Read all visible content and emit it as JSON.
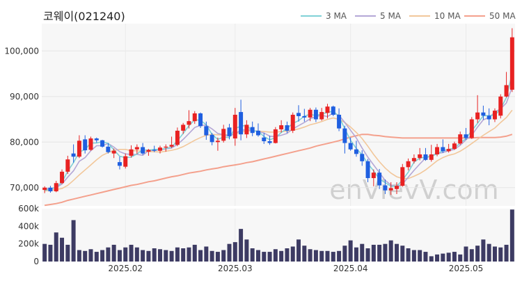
{
  "chart_data": {
    "type": "candlestick",
    "title": "코웨이(021240)",
    "watermark": "enVievV.com",
    "legend": [
      {
        "name": "3 MA",
        "color": "#7fd1d6"
      },
      {
        "name": "5 MA",
        "color": "#b4a7d6"
      },
      {
        "name": "10 MA",
        "color": "#f2c79a"
      },
      {
        "name": "50 MA",
        "color": "#f4a08c"
      }
    ],
    "price_axis": {
      "ylim": [
        66000,
        106000
      ],
      "ticks": [
        70000,
        80000,
        90000,
        100000
      ],
      "tick_labels": [
        "70,000",
        "80,000",
        "90,000",
        "100,000"
      ]
    },
    "volume_axis": {
      "ylim": [
        0,
        600000
      ],
      "ticks": [
        0,
        200000,
        400000,
        600000
      ],
      "tick_labels": [
        "0",
        "200k",
        "400k",
        "600k"
      ]
    },
    "x_labels": [
      {
        "index": 14,
        "label": "2025.02"
      },
      {
        "index": 33,
        "label": "2025.03"
      },
      {
        "index": 53,
        "label": "2025.04"
      },
      {
        "index": 73,
        "label": "2025.05"
      }
    ],
    "colors": {
      "up": "#e82222",
      "down": "#1f5fe0",
      "volume": "#3d3b63",
      "plot_bg": "#f7f7f7"
    },
    "ohlc": [
      [
        69500,
        70300,
        68800,
        70000
      ],
      [
        70000,
        70400,
        68900,
        69200
      ],
      [
        69200,
        71500,
        69000,
        71000
      ],
      [
        71000,
        74000,
        70800,
        73500
      ],
      [
        73500,
        77000,
        73000,
        76200
      ],
      [
        77500,
        79500,
        75500,
        76800
      ],
      [
        76800,
        81500,
        76500,
        80300
      ],
      [
        80600,
        81500,
        77500,
        78200
      ],
      [
        78300,
        81200,
        78100,
        80800
      ],
      [
        80800,
        81000,
        79900,
        80400
      ],
      [
        80400,
        80500,
        78800,
        79000
      ],
      [
        79000,
        79800,
        77500,
        77800
      ],
      [
        77500,
        78600,
        76500,
        78100
      ],
      [
        75600,
        76800,
        74000,
        74800
      ],
      [
        74600,
        77500,
        74200,
        76900
      ],
      [
        77000,
        79300,
        76600,
        78400
      ],
      [
        78400,
        79500,
        77400,
        78900
      ],
      [
        78900,
        79800,
        77200,
        77500
      ],
      [
        77900,
        78500,
        77000,
        78300
      ],
      [
        78300,
        79200,
        77800,
        78100
      ],
      [
        78100,
        79200,
        77500,
        78800
      ],
      [
        78800,
        79500,
        77900,
        79000
      ],
      [
        79000,
        81200,
        78700,
        79400
      ],
      [
        79400,
        83200,
        79100,
        82500
      ],
      [
        82500,
        84200,
        81800,
        83800
      ],
      [
        83800,
        87000,
        83000,
        84600
      ],
      [
        84600,
        86800,
        84000,
        86300
      ],
      [
        86300,
        86500,
        83100,
        83500
      ],
      [
        83500,
        84500,
        80500,
        81500
      ],
      [
        81600,
        82000,
        79300,
        80000
      ],
      [
        80000,
        81000,
        78100,
        80300
      ],
      [
        80300,
        83800,
        79900,
        82900
      ],
      [
        83200,
        84000,
        80600,
        81300
      ],
      [
        80800,
        87500,
        79200,
        86000
      ],
      [
        86600,
        89300,
        80400,
        81700
      ],
      [
        81700,
        84800,
        80900,
        83800
      ],
      [
        83300,
        84500,
        81300,
        82000
      ],
      [
        82500,
        84100,
        81200,
        81500
      ],
      [
        81000,
        82000,
        79600,
        80200
      ],
      [
        80200,
        81400,
        79400,
        79800
      ],
      [
        79800,
        83300,
        79700,
        82800
      ],
      [
        82800,
        84800,
        82100,
        83700
      ],
      [
        83700,
        84500,
        82000,
        82500
      ],
      [
        82500,
        86500,
        82000,
        86000
      ],
      [
        86400,
        88100,
        84500,
        85700
      ],
      [
        85700,
        87300,
        84500,
        85400
      ],
      [
        85400,
        87500,
        84600,
        87100
      ],
      [
        87100,
        87600,
        84400,
        85000
      ],
      [
        85000,
        87500,
        84700,
        86600
      ],
      [
        86400,
        88400,
        85200,
        87800
      ],
      [
        87800,
        88000,
        85700,
        86000
      ],
      [
        86000,
        87400,
        82400,
        83000
      ],
      [
        83000,
        83600,
        77500,
        79800
      ],
      [
        79800,
        81000,
        78100,
        78400
      ],
      [
        78400,
        80300,
        76800,
        77400
      ],
      [
        77400,
        78200,
        74800,
        75800
      ],
      [
        75800,
        76300,
        71200,
        72100
      ],
      [
        72100,
        74000,
        70300,
        73300
      ],
      [
        73300,
        74100,
        69700,
        70500
      ],
      [
        70500,
        71800,
        68600,
        69400
      ],
      [
        69400,
        71200,
        68400,
        69900
      ],
      [
        69700,
        71200,
        68600,
        70400
      ],
      [
        70400,
        75200,
        70200,
        74500
      ],
      [
        74500,
        76400,
        73800,
        75800
      ],
      [
        75800,
        77300,
        75300,
        76500
      ],
      [
        76500,
        78700,
        76000,
        77300
      ],
      [
        77300,
        78700,
        75900,
        76100
      ],
      [
        76100,
        79400,
        75700,
        77300
      ],
      [
        77300,
        79600,
        76900,
        78900
      ],
      [
        78900,
        80600,
        77600,
        78000
      ],
      [
        78000,
        79600,
        77700,
        78500
      ],
      [
        78500,
        80100,
        78300,
        79700
      ],
      [
        79700,
        82300,
        79400,
        81700
      ],
      [
        81700,
        83100,
        80500,
        80900
      ],
      [
        80900,
        85500,
        80700,
        85000
      ],
      [
        85000,
        90300,
        84200,
        86500
      ],
      [
        86500,
        88000,
        84900,
        85800
      ],
      [
        85800,
        87400,
        83700,
        85000
      ],
      [
        85000,
        87400,
        84400,
        86900
      ],
      [
        85800,
        90500,
        85200,
        90000
      ],
      [
        90000,
        95400,
        89800,
        92500
      ],
      [
        91500,
        105000,
        91000,
        103000
      ]
    ],
    "volume": [
      200000,
      190000,
      330000,
      270000,
      190000,
      470000,
      130000,
      120000,
      140000,
      110000,
      130000,
      160000,
      190000,
      130000,
      160000,
      190000,
      160000,
      130000,
      120000,
      150000,
      140000,
      130000,
      120000,
      160000,
      150000,
      160000,
      190000,
      130000,
      170000,
      120000,
      110000,
      130000,
      200000,
      220000,
      370000,
      250000,
      150000,
      130000,
      110000,
      110000,
      140000,
      120000,
      150000,
      170000,
      250000,
      180000,
      140000,
      130000,
      120000,
      120000,
      110000,
      120000,
      180000,
      240000,
      160000,
      200000,
      150000,
      190000,
      190000,
      200000,
      240000,
      200000,
      180000,
      150000,
      130000,
      130000,
      110000,
      60000,
      80000,
      90000,
      100000,
      110000,
      80000,
      170000,
      140000,
      180000,
      250000,
      200000,
      170000,
      160000,
      190000,
      590000
    ],
    "ma": {
      "3 MA": [
        69400,
        69700,
        70100,
        71200,
        73600,
        75500,
        77800,
        78400,
        79800,
        79800,
        80100,
        79700,
        78300,
        76900,
        76600,
        76700,
        77400,
        78300,
        78200,
        78400,
        78400,
        78600,
        78900,
        80300,
        81900,
        83600,
        84900,
        84800,
        83800,
        81700,
        80600,
        81100,
        81000,
        83000,
        83500,
        83700,
        82400,
        82400,
        81200,
        80500,
        81000,
        82100,
        83000,
        84100,
        84700,
        85700,
        86100,
        85800,
        86200,
        86500,
        86800,
        85600,
        82900,
        80400,
        78600,
        77200,
        75300,
        73700,
        71900,
        71100,
        70300,
        70300,
        71700,
        73400,
        75600,
        76500,
        76700,
        76900,
        77400,
        78100,
        78400,
        78700,
        79800,
        80800,
        82500,
        84100,
        85800,
        85800,
        85900,
        87300,
        89800,
        95100
      ],
      "5 MA": [
        69800,
        69800,
        70000,
        70800,
        72300,
        73700,
        75800,
        76600,
        78100,
        79200,
        79200,
        79700,
        78900,
        77900,
        77400,
        77300,
        77300,
        77100,
        78100,
        78200,
        78300,
        78500,
        78700,
        79500,
        80600,
        81900,
        83200,
        83700,
        83700,
        82900,
        81900,
        81600,
        81300,
        81900,
        82600,
        82700,
        82600,
        82300,
        82000,
        81300,
        81200,
        81500,
        81900,
        82900,
        83600,
        84300,
        85100,
        85600,
        85900,
        85600,
        86400,
        85900,
        84300,
        82600,
        80900,
        78700,
        76700,
        75000,
        73300,
        71600,
        70600,
        70200,
        70800,
        72300,
        73800,
        75200,
        76500,
        77000,
        77500,
        77700,
        78100,
        78400,
        79300,
        80500,
        81500,
        83300,
        84900,
        85400,
        86600,
        87300,
        88600,
        92100
      ],
      "10 MA": [
        69300,
        69400,
        69600,
        69800,
        70500,
        71600,
        72800,
        73900,
        75000,
        76100,
        77100,
        77700,
        78200,
        78400,
        78400,
        78100,
        78100,
        78000,
        77900,
        77900,
        77800,
        78000,
        78200,
        78500,
        79000,
        79700,
        80400,
        81000,
        81500,
        81700,
        81600,
        81600,
        81600,
        81800,
        82200,
        82400,
        82500,
        82400,
        82300,
        82200,
        82200,
        82300,
        82400,
        82600,
        82900,
        83300,
        83800,
        84100,
        84500,
        85000,
        85300,
        85000,
        84300,
        83300,
        82100,
        80800,
        79100,
        77300,
        75700,
        74300,
        73200,
        72400,
        72000,
        72000,
        72500,
        73100,
        73900,
        74900,
        75900,
        76600,
        77100,
        77400,
        78000,
        78800,
        79700,
        80600,
        81500,
        82300,
        83100,
        84300,
        85400,
        87000
      ],
      "50 MA": [
        66100,
        66300,
        66500,
        66800,
        67200,
        67500,
        67800,
        68100,
        68400,
        68700,
        69000,
        69300,
        69600,
        69900,
        70200,
        70500,
        70700,
        71000,
        71300,
        71500,
        71800,
        72100,
        72400,
        72600,
        72900,
        73200,
        73400,
        73600,
        73900,
        74100,
        74300,
        74600,
        74800,
        75000,
        75200,
        75500,
        75700,
        76000,
        76300,
        76600,
        76900,
        77200,
        77500,
        77800,
        78100,
        78400,
        78700,
        79100,
        79400,
        79700,
        80000,
        80300,
        80700,
        81100,
        81400,
        81700,
        81700,
        81500,
        81400,
        81200,
        81100,
        81000,
        80900,
        80900,
        80900,
        80900,
        80900,
        80900,
        80900,
        80900,
        80900,
        80900,
        80900,
        80900,
        80900,
        81000,
        81000,
        81000,
        81000,
        81100,
        81300,
        81700
      ]
    }
  }
}
